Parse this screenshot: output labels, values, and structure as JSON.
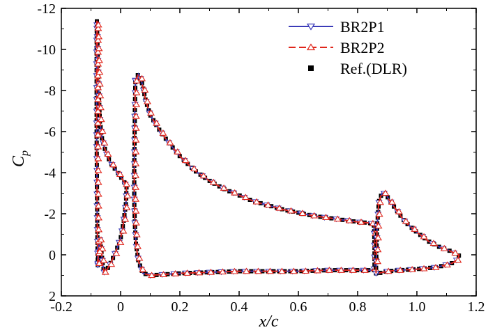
{
  "chart_data": {
    "type": "line",
    "xlabel": "x/c",
    "ylabel": "C",
    "ylabel_sub": "p",
    "xlim": [
      -0.2,
      1.2
    ],
    "ylim": [
      2,
      -12
    ],
    "y_inverted": true,
    "x_ticks": [
      "-0.2",
      "0",
      "0.2",
      "0.4",
      "0.6",
      "0.8",
      "1.0",
      "1.2"
    ],
    "x_tick_values": [
      -0.2,
      0,
      0.2,
      0.4,
      0.6,
      0.8,
      1.0,
      1.2
    ],
    "y_ticks": [
      "-12",
      "-10",
      "-8",
      "-6",
      "-4",
      "-2",
      "0",
      "2"
    ],
    "y_tick_values": [
      -12,
      -10,
      -8,
      -6,
      -4,
      -2,
      0,
      2
    ],
    "grid": false,
    "legend_position": "top-right",
    "series": [
      {
        "name": "BR2P1",
        "color": "#3b3bb8",
        "marker": "triangle-down",
        "style": "solid"
      },
      {
        "name": "BR2P2",
        "color": "#e0261b",
        "marker": "triangle-up",
        "style": "dashed"
      },
      {
        "name": "Ref.(DLR)",
        "color": "#000000",
        "marker": "square",
        "style": "none"
      }
    ],
    "slat": [
      [
        -0.077,
        0.5
      ],
      [
        -0.078,
        -0.5
      ],
      [
        -0.079,
        -2
      ],
      [
        -0.08,
        -4
      ],
      [
        -0.081,
        -6
      ],
      [
        -0.081,
        -8
      ],
      [
        -0.081,
        -10
      ],
      [
        -0.08,
        -11.4
      ],
      [
        -0.075,
        -8.5
      ],
      [
        -0.07,
        -6.5
      ],
      [
        -0.062,
        -5.6
      ],
      [
        -0.05,
        -5.0
      ],
      [
        -0.035,
        -4.5
      ],
      [
        -0.02,
        -4.2
      ],
      [
        -0.005,
        -3.9
      ],
      [
        0.01,
        -3.6
      ],
      [
        0.02,
        -3.3
      ],
      [
        0.018,
        -2.5
      ],
      [
        0.01,
        -1.6
      ],
      [
        0.0,
        -0.8
      ],
      [
        -0.015,
        -0.2
      ],
      [
        -0.03,
        0.3
      ],
      [
        -0.045,
        0.7
      ],
      [
        -0.055,
        0.9
      ],
      [
        -0.06,
        0.5
      ],
      [
        -0.065,
        -0.2
      ],
      [
        -0.07,
        -0.8
      ],
      [
        -0.074,
        -0.3
      ],
      [
        -0.077,
        0.5
      ]
    ],
    "main": [
      [
        0.05,
        -8.5
      ],
      [
        0.06,
        -8.8
      ],
      [
        0.07,
        -8.5
      ],
      [
        0.085,
        -7.5
      ],
      [
        0.1,
        -6.8
      ],
      [
        0.13,
        -6.1
      ],
      [
        0.16,
        -5.5
      ],
      [
        0.2,
        -4.8
      ],
      [
        0.25,
        -4.1
      ],
      [
        0.3,
        -3.6
      ],
      [
        0.35,
        -3.2
      ],
      [
        0.4,
        -2.9
      ],
      [
        0.45,
        -2.6
      ],
      [
        0.5,
        -2.4
      ],
      [
        0.55,
        -2.2
      ],
      [
        0.6,
        -2.05
      ],
      [
        0.65,
        -1.9
      ],
      [
        0.7,
        -1.8
      ],
      [
        0.75,
        -1.7
      ],
      [
        0.8,
        -1.6
      ],
      [
        0.84,
        -1.55
      ],
      [
        0.855,
        -1.5
      ],
      [
        0.857,
        -0.5
      ],
      [
        0.857,
        0.5
      ],
      [
        0.855,
        0.75
      ],
      [
        0.8,
        0.75
      ],
      [
        0.7,
        0.75
      ],
      [
        0.6,
        0.8
      ],
      [
        0.5,
        0.8
      ],
      [
        0.4,
        0.8
      ],
      [
        0.3,
        0.85
      ],
      [
        0.2,
        0.9
      ],
      [
        0.15,
        0.95
      ],
      [
        0.1,
        1.0
      ],
      [
        0.075,
        0.9
      ],
      [
        0.06,
        0.3
      ],
      [
        0.052,
        -0.5
      ],
      [
        0.048,
        -1.5
      ],
      [
        0.046,
        -2.7
      ],
      [
        0.046,
        -4.0
      ],
      [
        0.047,
        -5.5
      ],
      [
        0.048,
        -7.0
      ],
      [
        0.05,
        -8.5
      ]
    ],
    "flap": [
      [
        0.862,
        0.9
      ],
      [
        0.864,
        -0.5
      ],
      [
        0.866,
        -1.5
      ],
      [
        0.872,
        -2.6
      ],
      [
        0.882,
        -3.0
      ],
      [
        0.895,
        -3.0
      ],
      [
        0.905,
        -2.7
      ],
      [
        0.93,
        -2.2
      ],
      [
        0.96,
        -1.6
      ],
      [
        1.0,
        -1.1
      ],
      [
        1.04,
        -0.65
      ],
      [
        1.08,
        -0.35
      ],
      [
        1.11,
        -0.2
      ],
      [
        1.13,
        -0.05
      ],
      [
        1.142,
        0.0
      ],
      [
        1.14,
        0.2
      ],
      [
        1.12,
        0.4
      ],
      [
        1.07,
        0.6
      ],
      [
        1.0,
        0.7
      ],
      [
        0.94,
        0.75
      ],
      [
        0.9,
        0.8
      ],
      [
        0.87,
        0.9
      ],
      [
        0.862,
        0.9
      ]
    ]
  }
}
